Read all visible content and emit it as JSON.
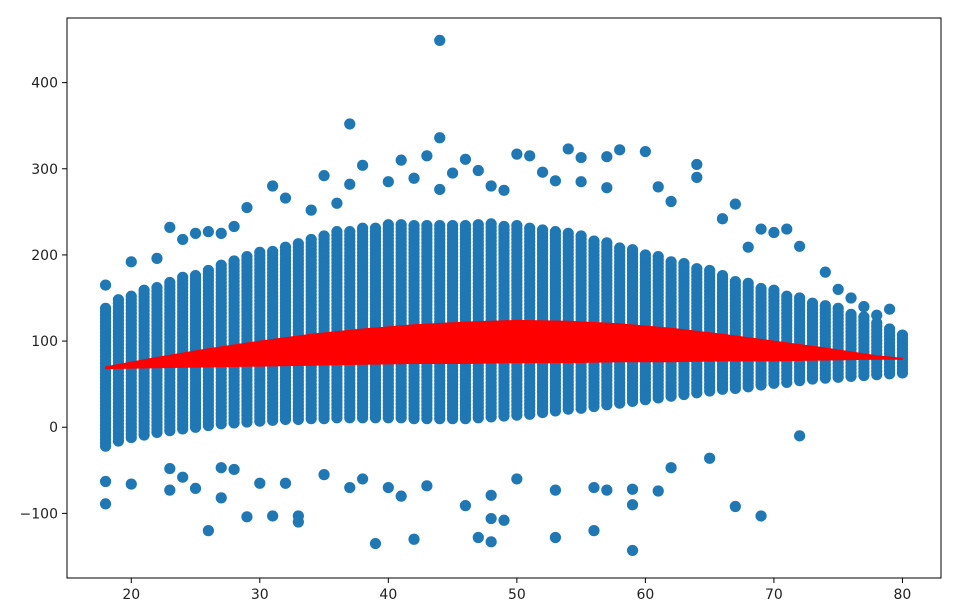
{
  "chart_data": {
    "type": "scatter",
    "title": "",
    "xlabel": "",
    "ylabel": "",
    "xlim": [
      15,
      83
    ],
    "ylim": [
      -175,
      475
    ],
    "xticks": [
      20,
      30,
      40,
      50,
      60,
      70,
      80
    ],
    "yticks": [
      -100,
      0,
      100,
      200,
      300,
      400
    ],
    "grid": false,
    "legend": "none",
    "colors": {
      "points": "#1f77b4",
      "fit": "#ff0000",
      "axes": "#000000",
      "background": "#ffffff"
    },
    "columns": {
      "x_range": [
        18,
        80
      ],
      "core_low": [
        -22,
        -16,
        -12,
        -9,
        -6,
        -4,
        -2,
        0,
        2,
        4,
        5,
        6,
        7,
        8,
        9,
        9,
        10,
        10,
        11,
        11,
        11,
        11,
        11,
        11,
        10,
        10,
        10,
        10,
        10,
        11,
        12,
        13,
        14,
        15,
        17,
        19,
        21,
        22,
        24,
        26,
        28,
        30,
        32,
        34,
        36,
        38,
        40,
        42,
        44,
        45,
        47,
        49,
        51,
        52,
        54,
        56,
        57,
        58,
        59,
        60,
        61,
        62,
        63
      ],
      "core_high": [
        140,
        150,
        152,
        160,
        162,
        170,
        175,
        178,
        182,
        190,
        195,
        198,
        203,
        207,
        212,
        215,
        220,
        225,
        228,
        230,
        232,
        234,
        235,
        236,
        236,
        236,
        236,
        236,
        236,
        236,
        236,
        235,
        234,
        232,
        230,
        228,
        226,
        222,
        218,
        214,
        210,
        206,
        202,
        198,
        194,
        190,
        186,
        182,
        178,
        172,
        168,
        164,
        160,
        155,
        150,
        146,
        142,
        138,
        134,
        128,
        122,
        116,
        110
      ]
    },
    "outliers": [
      {
        "x": 18,
        "y": 165
      },
      {
        "x": 18,
        "y": -63
      },
      {
        "x": 18,
        "y": -89
      },
      {
        "x": 20,
        "y": 192
      },
      {
        "x": 20,
        "y": -66
      },
      {
        "x": 22,
        "y": 196
      },
      {
        "x": 23,
        "y": 232
      },
      {
        "x": 23,
        "y": -48
      },
      {
        "x": 23,
        "y": -73
      },
      {
        "x": 24,
        "y": 218
      },
      {
        "x": 24,
        "y": -58
      },
      {
        "x": 25,
        "y": 225
      },
      {
        "x": 25,
        "y": -71
      },
      {
        "x": 26,
        "y": 227
      },
      {
        "x": 26,
        "y": -120
      },
      {
        "x": 27,
        "y": 225
      },
      {
        "x": 27,
        "y": -47
      },
      {
        "x": 27,
        "y": -82
      },
      {
        "x": 28,
        "y": 233
      },
      {
        "x": 28,
        "y": -49
      },
      {
        "x": 29,
        "y": 255
      },
      {
        "x": 29,
        "y": -104
      },
      {
        "x": 30,
        "y": -65
      },
      {
        "x": 31,
        "y": 280
      },
      {
        "x": 31,
        "y": -103
      },
      {
        "x": 32,
        "y": 266
      },
      {
        "x": 32,
        "y": -65
      },
      {
        "x": 33,
        "y": -103
      },
      {
        "x": 33,
        "y": -110
      },
      {
        "x": 34,
        "y": 252
      },
      {
        "x": 35,
        "y": 292
      },
      {
        "x": 35,
        "y": -55
      },
      {
        "x": 36,
        "y": 260
      },
      {
        "x": 37,
        "y": 352
      },
      {
        "x": 37,
        "y": 282
      },
      {
        "x": 37,
        "y": -70
      },
      {
        "x": 38,
        "y": 304
      },
      {
        "x": 38,
        "y": -60
      },
      {
        "x": 39,
        "y": -135
      },
      {
        "x": 40,
        "y": 285
      },
      {
        "x": 40,
        "y": -70
      },
      {
        "x": 41,
        "y": 310
      },
      {
        "x": 41,
        "y": -80
      },
      {
        "x": 42,
        "y": 289
      },
      {
        "x": 42,
        "y": -130
      },
      {
        "x": 43,
        "y": 315
      },
      {
        "x": 43,
        "y": -68
      },
      {
        "x": 44,
        "y": 449
      },
      {
        "x": 44,
        "y": 336
      },
      {
        "x": 44,
        "y": 276
      },
      {
        "x": 45,
        "y": 295
      },
      {
        "x": 46,
        "y": 311
      },
      {
        "x": 46,
        "y": -91
      },
      {
        "x": 47,
        "y": 298
      },
      {
        "x": 47,
        "y": -128
      },
      {
        "x": 48,
        "y": 280
      },
      {
        "x": 48,
        "y": -79
      },
      {
        "x": 48,
        "y": -106
      },
      {
        "x": 48,
        "y": -133
      },
      {
        "x": 49,
        "y": 275
      },
      {
        "x": 49,
        "y": -108
      },
      {
        "x": 50,
        "y": 317
      },
      {
        "x": 50,
        "y": -60
      },
      {
        "x": 51,
        "y": 315
      },
      {
        "x": 52,
        "y": 296
      },
      {
        "x": 53,
        "y": 286
      },
      {
        "x": 53,
        "y": -73
      },
      {
        "x": 53,
        "y": -128
      },
      {
        "x": 54,
        "y": 323
      },
      {
        "x": 55,
        "y": 313
      },
      {
        "x": 55,
        "y": 285
      },
      {
        "x": 56,
        "y": -120
      },
      {
        "x": 56,
        "y": -70
      },
      {
        "x": 57,
        "y": 314
      },
      {
        "x": 57,
        "y": 278
      },
      {
        "x": 57,
        "y": -73
      },
      {
        "x": 58,
        "y": 322
      },
      {
        "x": 59,
        "y": -72
      },
      {
        "x": 59,
        "y": -90
      },
      {
        "x": 59,
        "y": -143
      },
      {
        "x": 60,
        "y": 320
      },
      {
        "x": 61,
        "y": 279
      },
      {
        "x": 61,
        "y": -74
      },
      {
        "x": 62,
        "y": 262
      },
      {
        "x": 62,
        "y": -47
      },
      {
        "x": 64,
        "y": 305
      },
      {
        "x": 64,
        "y": 290
      },
      {
        "x": 65,
        "y": -36
      },
      {
        "x": 66,
        "y": 242
      },
      {
        "x": 67,
        "y": 259
      },
      {
        "x": 67,
        "y": -92
      },
      {
        "x": 68,
        "y": 209
      },
      {
        "x": 69,
        "y": 230
      },
      {
        "x": 69,
        "y": -103
      },
      {
        "x": 70,
        "y": 226
      },
      {
        "x": 71,
        "y": 230
      },
      {
        "x": 72,
        "y": 210
      },
      {
        "x": 72,
        "y": -10
      },
      {
        "x": 74,
        "y": 180
      },
      {
        "x": 75,
        "y": 160
      },
      {
        "x": 76,
        "y": 150
      },
      {
        "x": 77,
        "y": 140
      },
      {
        "x": 78,
        "y": 130
      },
      {
        "x": 79,
        "y": 137
      }
    ],
    "fit_band": [
      {
        "x": 18,
        "low": 68,
        "high": 70
      },
      {
        "x": 22,
        "low": 69,
        "high": 81
      },
      {
        "x": 26,
        "low": 70,
        "high": 91
      },
      {
        "x": 30,
        "low": 71,
        "high": 100
      },
      {
        "x": 34,
        "low": 72,
        "high": 108
      },
      {
        "x": 38,
        "low": 73,
        "high": 114
      },
      {
        "x": 42,
        "low": 74,
        "high": 119
      },
      {
        "x": 46,
        "low": 74,
        "high": 122
      },
      {
        "x": 50,
        "low": 75,
        "high": 124
      },
      {
        "x": 54,
        "low": 75,
        "high": 123
      },
      {
        "x": 58,
        "low": 76,
        "high": 120
      },
      {
        "x": 62,
        "low": 76,
        "high": 115
      },
      {
        "x": 66,
        "low": 77,
        "high": 108
      },
      {
        "x": 70,
        "low": 77,
        "high": 100
      },
      {
        "x": 74,
        "low": 78,
        "high": 92
      },
      {
        "x": 78,
        "low": 79,
        "high": 83
      },
      {
        "x": 80,
        "low": 79,
        "high": 80
      }
    ]
  }
}
